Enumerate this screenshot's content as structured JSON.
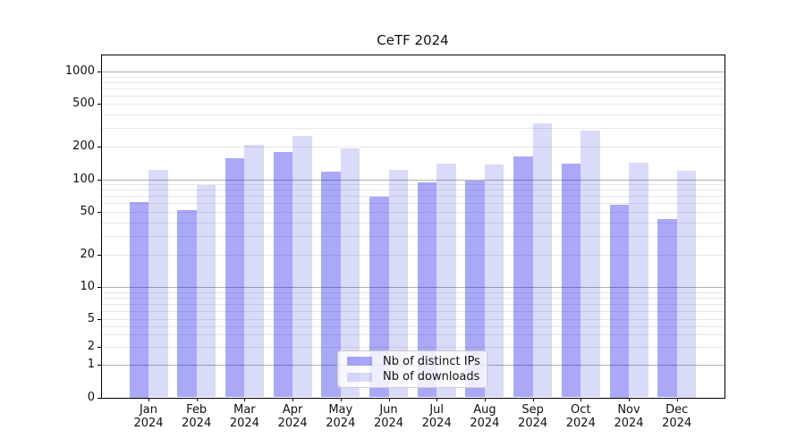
{
  "title": "CeTF 2024",
  "legend": {
    "items": [
      {
        "label": "Nb of distinct IPs",
        "color": "rgba(8,8,235,0.35)"
      },
      {
        "label": "Nb of downloads",
        "color": "rgba(25,25,215,0.16)"
      }
    ]
  },
  "colors": {
    "bar_dark_solid": "#a9a9f7",
    "bar_light_solid": "#dadaf8",
    "grid_major": "#b0b0b0",
    "grid_minor": "#e7e7e7",
    "spine": "#000000"
  },
  "chart_data": {
    "type": "bar",
    "title": "CeTF 2024",
    "categories": [
      "Jan 2024",
      "Feb 2024",
      "Mar 2024",
      "Apr 2024",
      "May 2024",
      "Jun 2024",
      "Jul 2024",
      "Aug 2024",
      "Sep 2024",
      "Oct 2024",
      "Nov 2024",
      "Dec 2024"
    ],
    "series": [
      {
        "name": "Nb of distinct IPs",
        "color": "rgba(8,8,235,0.35)",
        "values": [
          62,
          52,
          157,
          180,
          117,
          69,
          94,
          97,
          164,
          140,
          58,
          43
        ]
      },
      {
        "name": "Nb of downloads",
        "color": "rgba(25,25,215,0.16)",
        "values": [
          122,
          89,
          210,
          253,
          192,
          122,
          140,
          138,
          329,
          283,
          143,
          120
        ]
      }
    ],
    "xlabel": "",
    "ylabel": "",
    "yscale": "symlog",
    "ylim": [
      0,
      1000
    ],
    "yticks": [
      0,
      1,
      2,
      5,
      10,
      20,
      50,
      100,
      200,
      500,
      1000
    ],
    "grid": true,
    "legend_position": "lower center"
  }
}
